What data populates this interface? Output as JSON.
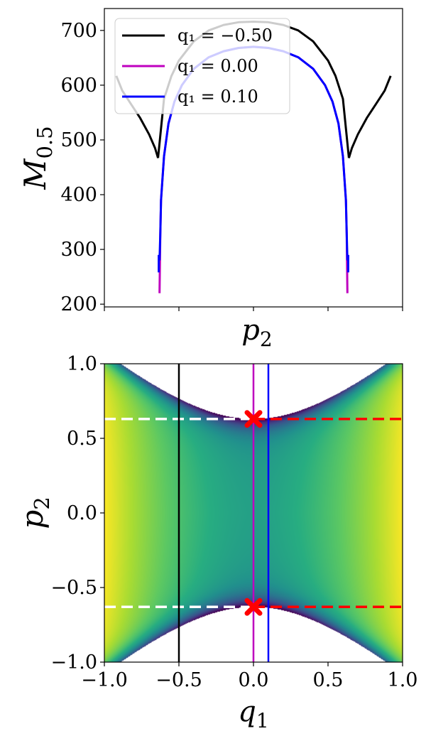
{
  "chart_data": [
    {
      "type": "line",
      "xlabel": "p_2",
      "ylabel": "M_{0.5}",
      "ylim": [
        195,
        740
      ],
      "y_ticks": [
        200,
        300,
        400,
        500,
        600,
        700
      ],
      "y_tick_labels": [
        "200",
        "300",
        "400",
        "500",
        "600",
        "700"
      ],
      "x_ticks_unlabeled": [
        -1.0,
        -0.5,
        0.0,
        0.5,
        1.0
      ],
      "xlim": [
        -1.0,
        1.0
      ],
      "legend_position": "top-left",
      "series": [
        {
          "name": "q₁ = −0.50",
          "legend_label": "q_1 = -0.50",
          "color": "#000000",
          "segments": [
            {
              "x": [
                -0.92,
                -0.88,
                -0.82,
                -0.76,
                -0.7,
                -0.66,
                -0.64
              ],
              "y": [
                617,
                590,
                565,
                540,
                510,
                485,
                467
              ]
            },
            {
              "x": [
                -0.64,
                -0.6,
                -0.55,
                -0.5,
                -0.4,
                -0.3,
                -0.2,
                -0.1,
                0.0,
                0.1,
                0.2,
                0.3,
                0.4,
                0.5,
                0.55,
                0.6,
                0.64
              ],
              "y": [
                467,
                575,
                617,
                645,
                680,
                700,
                710,
                715,
                716,
                715,
                710,
                700,
                680,
                645,
                617,
                575,
                467
              ]
            },
            {
              "x": [
                0.64,
                0.66,
                0.7,
                0.76,
                0.82,
                0.88,
                0.92
              ],
              "y": [
                467,
                485,
                510,
                540,
                565,
                590,
                617
              ]
            }
          ]
        },
        {
          "name": "q₁ = 0.00",
          "legend_label": "q_1 = 0.00",
          "color": "#bf00bf",
          "segments": [
            {
              "x": [
                -0.63,
                -0.625,
                -0.62,
                -0.6,
                -0.57,
                -0.53,
                -0.48,
                -0.4,
                -0.3,
                -0.2,
                -0.1,
                0.0,
                0.1,
                0.2,
                0.3,
                0.4,
                0.48,
                0.53,
                0.57,
                0.6,
                0.62,
                0.625,
                0.63
              ],
              "y": [
                220,
                330,
                390,
                470,
                530,
                570,
                600,
                630,
                651,
                662,
                668,
                670,
                668,
                662,
                651,
                630,
                600,
                570,
                530,
                470,
                390,
                330,
                220
              ]
            }
          ]
        },
        {
          "name": "q₁ = 0.10",
          "legend_label": "q_1 = 0.10",
          "color": "#0000ff",
          "segments": [
            {
              "x": [
                -0.635,
                -0.635
              ],
              "y": [
                258,
                290
              ]
            },
            {
              "x": [
                -0.63,
                -0.625,
                -0.62,
                -0.6,
                -0.57,
                -0.53,
                -0.48,
                -0.4,
                -0.3,
                -0.2,
                -0.1,
                0.0,
                0.1,
                0.2,
                0.3,
                0.4,
                0.48,
                0.53,
                0.57,
                0.6,
                0.62,
                0.625,
                0.63
              ],
              "y": [
                280,
                330,
                390,
                470,
                530,
                570,
                600,
                630,
                651,
                662,
                668,
                670,
                668,
                662,
                651,
                630,
                600,
                570,
                530,
                470,
                390,
                330,
                280
              ]
            },
            {
              "x": [
                0.635,
                0.635
              ],
              "y": [
                258,
                290
              ]
            }
          ]
        }
      ]
    },
    {
      "type": "heatmap",
      "xlabel": "q_1",
      "ylabel": "p_2",
      "xlim": [
        -1.0,
        1.0
      ],
      "ylim": [
        -1.0,
        1.0
      ],
      "x_ticks": [
        -1.0,
        -0.5,
        0.0,
        0.5,
        1.0
      ],
      "x_tick_labels": [
        "−1.0",
        "−0.5",
        "0.0",
        "0.5",
        "1.0"
      ],
      "y_ticks": [
        -1.0,
        -0.5,
        0.0,
        0.5,
        1.0
      ],
      "y_tick_labels": [
        "−1.0",
        "−0.5",
        "0.0",
        "0.5",
        "1.0"
      ],
      "colormap": "viridis",
      "boundary_p2_at_q1_zero": 0.63,
      "vertical_lines": [
        {
          "q1": -0.5,
          "color": "#000000"
        },
        {
          "q1": 0.0,
          "color": "#bf00bf"
        },
        {
          "q1": 0.1,
          "color": "#0000ff"
        }
      ],
      "dashed_lines": [
        {
          "p2": 0.63,
          "from": -1.0,
          "to": 0.0,
          "color": "#ffffff"
        },
        {
          "p2": 0.63,
          "from": 0.0,
          "to": 1.0,
          "color": "#ff0000"
        },
        {
          "p2": -0.63,
          "from": -1.0,
          "to": 0.0,
          "color": "#ffffff"
        },
        {
          "p2": -0.63,
          "from": 0.0,
          "to": 1.0,
          "color": "#ff0000"
        }
      ],
      "markers": [
        {
          "q1": 0.0,
          "p2": 0.63,
          "shape": "X",
          "color": "#ff0000"
        },
        {
          "q1": 0.0,
          "p2": -0.63,
          "shape": "X",
          "color": "#ff0000"
        }
      ]
    }
  ]
}
